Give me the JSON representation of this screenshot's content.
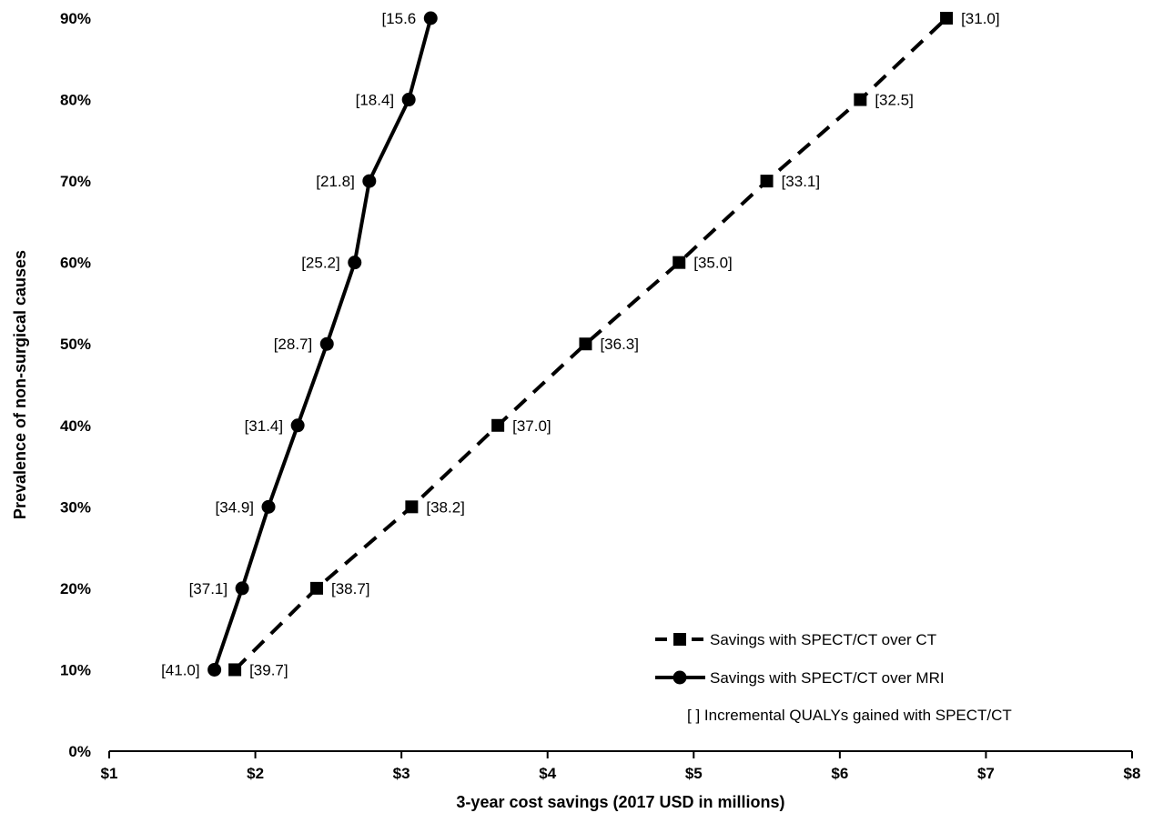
{
  "chart_data": {
    "type": "line",
    "xlabel": "3-year cost savings (2017 USD in millions)",
    "ylabel": "Prevalence of non-surgical causes",
    "xlim": [
      1,
      8
    ],
    "ylim": [
      0,
      90
    ],
    "x_ticks": [
      1,
      2,
      3,
      4,
      5,
      6,
      7,
      8
    ],
    "x_tick_labels": [
      "$1",
      "$2",
      "$3",
      "$4",
      "$5",
      "$6",
      "$7",
      "$8"
    ],
    "y_ticks": [
      0,
      10,
      20,
      30,
      40,
      50,
      60,
      70,
      80,
      90
    ],
    "y_tick_labels": [
      "0%",
      "10%",
      "20%",
      "30%",
      "40%",
      "50%",
      "60%",
      "70%",
      "80%",
      "90%"
    ],
    "grid": false,
    "legend_position": "bottom-right",
    "series": [
      {
        "name": "Savings with SPECT/CT over CT",
        "marker": "square",
        "line_style": "dashed",
        "color": "#000000",
        "points": [
          {
            "x": 1.86,
            "y": 10,
            "label": "[39.7]"
          },
          {
            "x": 2.42,
            "y": 20,
            "label": "[38.7]"
          },
          {
            "x": 3.07,
            "y": 30,
            "label": "[38.2]"
          },
          {
            "x": 3.66,
            "y": 40,
            "label": "[37.0]"
          },
          {
            "x": 4.26,
            "y": 50,
            "label": "[36.3]"
          },
          {
            "x": 4.9,
            "y": 60,
            "label": "[35.0]"
          },
          {
            "x": 5.5,
            "y": 70,
            "label": "[33.1]"
          },
          {
            "x": 6.14,
            "y": 80,
            "label": "[32.5]"
          },
          {
            "x": 6.73,
            "y": 90,
            "label": "[31.0]"
          }
        ]
      },
      {
        "name": "Savings with SPECT/CT over MRI",
        "marker": "circle",
        "line_style": "solid",
        "color": "#000000",
        "points": [
          {
            "x": 1.72,
            "y": 10,
            "label": "[41.0]"
          },
          {
            "x": 1.91,
            "y": 20,
            "label": "[37.1]"
          },
          {
            "x": 2.09,
            "y": 30,
            "label": "[34.9]"
          },
          {
            "x": 2.29,
            "y": 40,
            "label": "[31.4]"
          },
          {
            "x": 2.49,
            "y": 50,
            "label": "[28.7]"
          },
          {
            "x": 2.68,
            "y": 60,
            "label": "[25.2]"
          },
          {
            "x": 2.78,
            "y": 70,
            "label": "[21.8]"
          },
          {
            "x": 3.05,
            "y": 80,
            "label": "[18.4]"
          },
          {
            "x": 3.2,
            "y": 90,
            "label": "[15.6"
          }
        ]
      }
    ],
    "legend_note": "[ ] Incremental QUALYs gained with SPECT/CT"
  }
}
